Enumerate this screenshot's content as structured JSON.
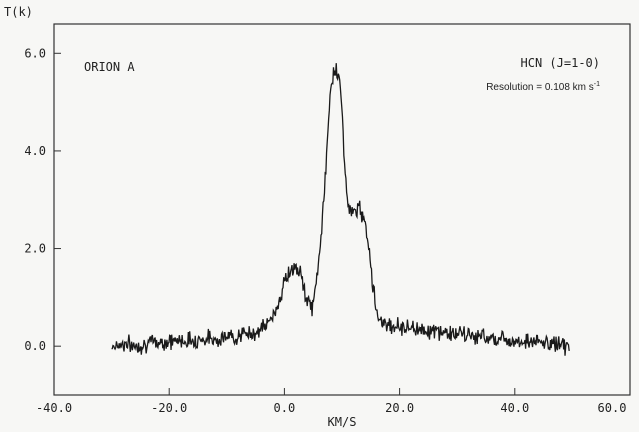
{
  "chart_data": {
    "type": "line",
    "ylabel": "T(k)",
    "xlabel": "KM/S",
    "xlim": [
      -40,
      60
    ],
    "ylim": [
      -1.0,
      6.6
    ],
    "x_ticks": [
      -40,
      -20,
      0,
      20,
      40,
      60
    ],
    "x_tick_labels": [
      "-40.0",
      "-20.0",
      "0.0",
      "20.0",
      "40.0",
      "60.0"
    ],
    "y_ticks": [
      0,
      2,
      4,
      6
    ],
    "y_tick_labels": [
      "0.0",
      "2.0",
      "4.0",
      "6.0"
    ],
    "grid": false,
    "annotations": [
      {
        "text": "ORION A",
        "position": "top-left"
      },
      {
        "text": "HCN (J=1-0)",
        "position": "top-right"
      },
      {
        "text": "Resolution = 0.108 km s",
        "superscript": "-1",
        "position": "top-right"
      }
    ],
    "series": [
      {
        "x": [
          -30,
          -28,
          -26,
          -24,
          -22,
          -20,
          -18,
          -16,
          -14,
          -12,
          -10,
          -8,
          -6,
          -4,
          -3,
          -2,
          -1,
          0,
          1,
          2,
          3,
          4,
          5,
          6,
          7,
          7.5,
          8,
          8.5,
          9,
          9.5,
          10,
          10.5,
          11,
          11.5,
          12,
          12.5,
          13,
          13.5,
          14,
          14.5,
          15,
          15.5,
          16,
          17,
          18,
          19,
          20,
          22,
          24,
          26,
          28,
          30,
          32,
          34,
          36,
          38,
          40,
          42,
          44,
          46,
          48,
          49.5
        ],
        "y": [
          0.0,
          0.05,
          0.0,
          0.05,
          0.08,
          0.1,
          0.12,
          0.12,
          0.15,
          0.15,
          0.18,
          0.22,
          0.25,
          0.35,
          0.45,
          0.6,
          0.9,
          1.3,
          1.55,
          1.6,
          1.4,
          0.9,
          0.8,
          1.8,
          3.2,
          4.3,
          5.2,
          5.6,
          5.75,
          5.5,
          4.8,
          3.7,
          2.9,
          2.7,
          2.75,
          2.8,
          2.8,
          2.7,
          2.6,
          2.2,
          1.7,
          1.1,
          0.7,
          0.5,
          0.45,
          0.42,
          0.4,
          0.38,
          0.35,
          0.3,
          0.28,
          0.25,
          0.22,
          0.2,
          0.18,
          0.15,
          0.12,
          0.1,
          0.08,
          0.05,
          0.05,
          0.0
        ]
      }
    ]
  }
}
